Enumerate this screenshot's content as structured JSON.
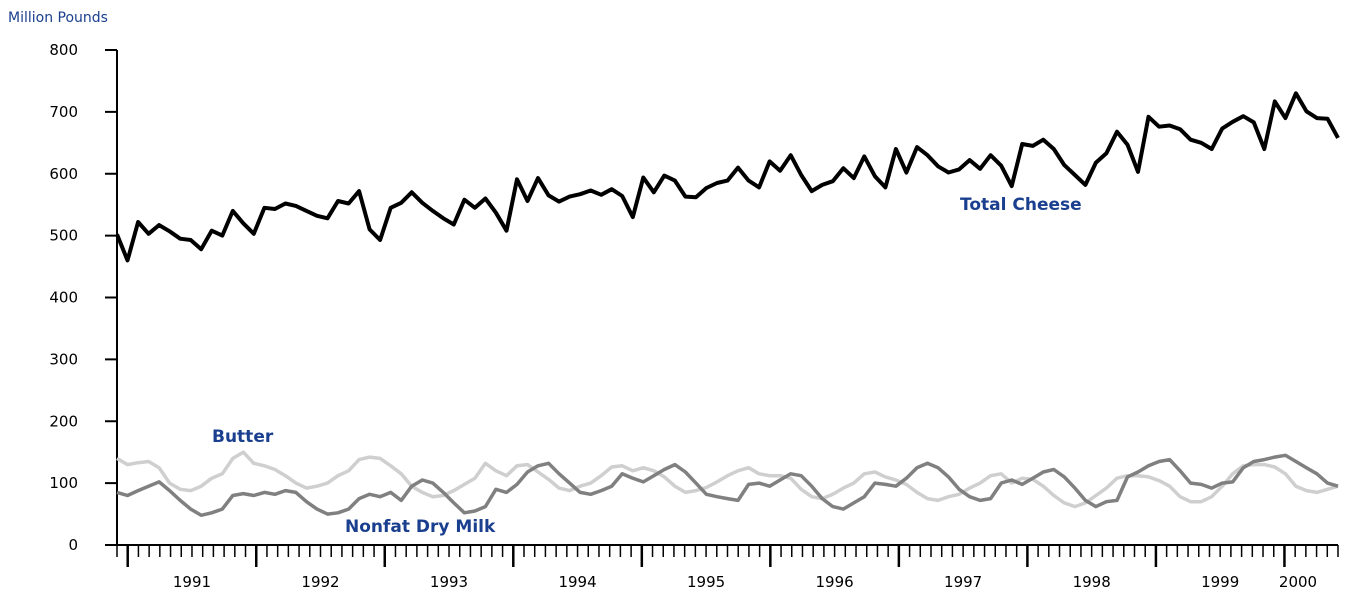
{
  "chart_data": {
    "type": "line",
    "title": "",
    "unit_label": "Million Pounds",
    "xlabel": "",
    "ylabel": "",
    "ylim": [
      0,
      800
    ],
    "yticks": [
      0,
      100,
      200,
      300,
      400,
      500,
      600,
      700,
      800
    ],
    "x_start": "1990-12",
    "x_end": "2000-06",
    "x_tick_labels": [
      "1991",
      "1992",
      "1993",
      "1994",
      "1995",
      "1996",
      "1997",
      "1998",
      "1999",
      "2000"
    ],
    "grid": false,
    "legend": "none (series labelled directly on the chart)",
    "series": [
      {
        "name": "Total Cheese",
        "color": "#000000",
        "values": [
          502,
          460,
          522,
          503,
          517,
          507,
          495,
          493,
          478,
          508,
          500,
          540,
          520,
          503,
          545,
          543,
          552,
          548,
          540,
          532,
          528,
          556,
          552,
          572,
          510,
          493,
          545,
          553,
          570,
          553,
          540,
          528,
          518,
          558,
          545,
          560,
          537,
          508,
          591,
          556,
          593,
          565,
          555,
          563,
          567,
          573,
          566,
          575,
          564,
          530,
          594,
          570,
          597,
          589,
          563,
          562,
          577,
          585,
          589,
          610,
          589,
          578,
          620,
          605,
          630,
          598,
          572,
          582,
          588,
          609,
          593,
          628,
          596,
          578,
          640,
          602,
          643,
          630,
          612,
          602,
          607,
          622,
          608,
          630,
          613,
          580,
          648,
          645,
          655,
          640,
          614,
          598,
          582,
          618,
          633,
          668,
          647,
          603,
          692,
          676,
          678,
          672,
          655,
          650,
          640,
          673,
          684,
          693,
          683,
          640,
          717,
          690,
          730,
          701,
          690,
          689,
          658
        ],
        "label": "Total Cheese"
      },
      {
        "name": "Butter",
        "color": "#cfcfcf",
        "values": [
          140,
          130,
          133,
          135,
          125,
          100,
          90,
          88,
          95,
          108,
          115,
          140,
          150,
          132,
          128,
          122,
          112,
          100,
          92,
          95,
          100,
          112,
          120,
          138,
          142,
          140,
          128,
          115,
          95,
          85,
          78,
          80,
          88,
          98,
          108,
          132,
          120,
          112,
          128,
          130,
          118,
          106,
          92,
          88,
          95,
          100,
          112,
          126,
          128,
          120,
          125,
          120,
          110,
          95,
          85,
          88,
          93,
          102,
          112,
          120,
          125,
          115,
          112,
          112,
          108,
          90,
          78,
          75,
          82,
          92,
          100,
          115,
          118,
          110,
          105,
          98,
          85,
          75,
          72,
          78,
          82,
          92,
          100,
          112,
          115,
          100,
          108,
          106,
          95,
          80,
          68,
          62,
          68,
          80,
          92,
          108,
          112,
          112,
          110,
          104,
          95,
          78,
          70,
          70,
          78,
          95,
          115,
          128,
          130,
          130,
          126,
          115,
          95,
          88,
          85,
          90,
          95
        ],
        "label": "Butter"
      },
      {
        "name": "Nonfat Dry Milk",
        "color": "#808080",
        "values": [
          85,
          80,
          88,
          95,
          102,
          88,
          72,
          58,
          48,
          52,
          58,
          80,
          83,
          80,
          85,
          82,
          88,
          85,
          70,
          58,
          50,
          52,
          58,
          75,
          82,
          78,
          85,
          72,
          95,
          105,
          100,
          85,
          68,
          52,
          55,
          62,
          90,
          85,
          98,
          118,
          128,
          132,
          115,
          100,
          85,
          82,
          88,
          95,
          115,
          108,
          102,
          112,
          122,
          130,
          118,
          100,
          82,
          78,
          75,
          72,
          98,
          100,
          95,
          105,
          115,
          112,
          95,
          75,
          62,
          58,
          68,
          78,
          100,
          98,
          95,
          108,
          125,
          132,
          125,
          110,
          90,
          78,
          72,
          75,
          100,
          105,
          98,
          108,
          118,
          122,
          110,
          92,
          72,
          62,
          70,
          72,
          110,
          118,
          128,
          135,
          138,
          120,
          100,
          98,
          92,
          100,
          102,
          125,
          135,
          138,
          142,
          145,
          135,
          125,
          115,
          100,
          95
        ],
        "label": "Nonfat Dry Milk"
      }
    ],
    "colors": {
      "label_text": "#1a3f8f",
      "axis": "#000000"
    }
  }
}
